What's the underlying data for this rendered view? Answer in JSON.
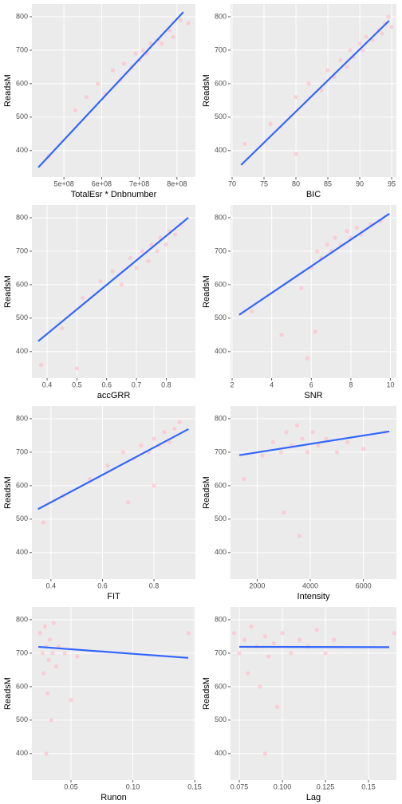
{
  "chart_data": [
    {
      "type": "scatter",
      "x_label": "TotalEsr * Dnbnumber",
      "y_label": "ReadsM",
      "point_color": "#ffb6c1",
      "line_color": "#3366ff",
      "xlim": [
        415000000,
        849000000
      ],
      "ylim": [
        321,
        838
      ],
      "xticks": [
        {
          "value": 500000000,
          "label": "5e+08"
        },
        {
          "value": 600000000,
          "label": "6e+08"
        },
        {
          "value": 700000000,
          "label": "7e+08"
        },
        {
          "value": 800000000,
          "label": "8e+08"
        }
      ],
      "yticks": [
        400,
        500,
        600,
        700,
        800
      ],
      "x": [
        460000000,
        530000000,
        560000000,
        590000000,
        610000000,
        630000000,
        650000000,
        660000000,
        680000000,
        690000000,
        700000000,
        710000000,
        720000000,
        730000000,
        750000000,
        760000000,
        780000000,
        790000000,
        810000000,
        830000000
      ],
      "y": [
        384,
        520,
        560,
        600,
        570,
        640,
        610,
        660,
        650,
        690,
        670,
        700,
        690,
        720,
        730,
        720,
        760,
        740,
        790,
        780
      ],
      "fit": {
        "x": [
          432000000,
          817000000
        ],
        "y": [
          350,
          814
        ]
      }
    },
    {
      "type": "scatter",
      "x_label": "BIC",
      "y_label": "ReadsM",
      "point_color": "#ffb6c1",
      "line_color": "#3366ff",
      "xlim": [
        69.75,
        95.75
      ],
      "ylim": [
        321,
        838
      ],
      "xticks": [
        70,
        75,
        80,
        85,
        90,
        95
      ],
      "yticks": [
        400,
        500,
        600,
        700,
        800
      ],
      "x": [
        72,
        76,
        80,
        82,
        84,
        85,
        86,
        87,
        88,
        88.5,
        89,
        90,
        90.5,
        91,
        92,
        93,
        93.5,
        94,
        94.5,
        95,
        80
      ],
      "y": [
        420,
        480,
        560,
        600,
        580,
        640,
        620,
        670,
        650,
        700,
        680,
        720,
        700,
        740,
        730,
        760,
        750,
        780,
        800,
        770,
        390
      ],
      "fit": {
        "x": [
          71.4,
          94.6
        ],
        "y": [
          357,
          788
        ]
      }
    },
    {
      "type": "scatter",
      "x_label": "accGRR",
      "y_label": "ReadsM",
      "point_color": "#ffb6c1",
      "line_color": "#3366ff",
      "xlim": [
        0.349,
        0.898
      ],
      "ylim": [
        321,
        838
      ],
      "xticks": [
        0.4,
        0.5,
        0.6,
        0.7,
        0.8
      ],
      "yticks": [
        400,
        500,
        600,
        700,
        800
      ],
      "x": [
        0.38,
        0.45,
        0.52,
        0.58,
        0.62,
        0.65,
        0.68,
        0.7,
        0.72,
        0.74,
        0.75,
        0.77,
        0.78,
        0.8,
        0.81,
        0.83,
        0.85,
        0.5
      ],
      "y": [
        360,
        470,
        560,
        610,
        640,
        600,
        680,
        650,
        700,
        670,
        720,
        700,
        740,
        720,
        760,
        750,
        780,
        350
      ],
      "fit": {
        "x": [
          0.37,
          0.874
        ],
        "y": [
          431,
          800
        ]
      }
    },
    {
      "type": "scatter",
      "x_label": "SNR",
      "y_label": "ReadsM",
      "point_color": "#ffb6c1",
      "line_color": "#3366ff",
      "xlim": [
        1.92,
        10.3
      ],
      "ylim": [
        321,
        838
      ],
      "xticks": [
        2,
        4,
        6,
        8,
        10
      ],
      "yticks": [
        400,
        500,
        600,
        700,
        800
      ],
      "x": [
        3,
        4.5,
        5.5,
        6,
        6.3,
        6.5,
        6.8,
        7,
        7.2,
        7.5,
        7.8,
        8,
        8.3,
        8.5,
        9,
        9.5,
        5.8,
        6.2
      ],
      "y": [
        520,
        450,
        590,
        650,
        700,
        680,
        720,
        700,
        740,
        720,
        760,
        740,
        770,
        750,
        780,
        790,
        380,
        460
      ],
      "fit": {
        "x": [
          2.36,
          9.94
        ],
        "y": [
          510,
          812
        ]
      }
    },
    {
      "type": "scatter",
      "x_label": "FIT",
      "y_label": "ReadsM",
      "point_color": "#ffb6c1",
      "line_color": "#3366ff",
      "xlim": [
        0.326,
        0.961
      ],
      "ylim": [
        321,
        838
      ],
      "xticks": [
        0.4,
        0.6,
        0.8
      ],
      "yticks": [
        400,
        500,
        600,
        700,
        800
      ],
      "x": [
        0.37,
        0.45,
        0.55,
        0.62,
        0.68,
        0.72,
        0.75,
        0.78,
        0.8,
        0.82,
        0.84,
        0.86,
        0.88,
        0.9,
        0.7,
        0.8
      ],
      "y": [
        490,
        570,
        620,
        660,
        700,
        680,
        720,
        700,
        740,
        720,
        760,
        730,
        770,
        790,
        550,
        600
      ],
      "fit": {
        "x": [
          0.35,
          0.934
        ],
        "y": [
          530,
          769
        ]
      }
    },
    {
      "type": "scatter",
      "x_label": "Intensity",
      "y_label": "ReadsM",
      "point_color": "#ffb6c1",
      "line_color": "#3366ff",
      "xlim": [
        1000,
        7240
      ],
      "ylim": [
        321,
        838
      ],
      "xticks": [
        2000,
        4000,
        6000
      ],
      "yticks": [
        400,
        500,
        600,
        700,
        800
      ],
      "x": [
        1500,
        2200,
        2600,
        2900,
        3100,
        3300,
        3500,
        3700,
        3900,
        4100,
        4300,
        4600,
        5000,
        5400,
        6000,
        6800,
        3000,
        3600
      ],
      "y": [
        620,
        690,
        730,
        700,
        760,
        720,
        780,
        740,
        700,
        760,
        720,
        740,
        700,
        730,
        710,
        760,
        520,
        450
      ],
      "fit": {
        "x": [
          1330,
          6970
        ],
        "y": [
          691,
          762
        ]
      }
    },
    {
      "type": "scatter",
      "x_label": "Runon",
      "y_label": "ReadsM",
      "point_color": "#ffb6c1",
      "line_color": "#3366ff",
      "xlim": [
        0.0184,
        0.1506
      ],
      "ylim": [
        321,
        838
      ],
      "xticks": [
        0.05,
        {
          "value": 0.1,
          "label": "0.10"
        },
        0.15
      ],
      "yticks": [
        400,
        500,
        600,
        700,
        800
      ],
      "x": [
        0.025,
        0.027,
        0.028,
        0.029,
        0.03,
        0.031,
        0.032,
        0.033,
        0.034,
        0.035,
        0.036,
        0.038,
        0.04,
        0.045,
        0.05,
        0.055,
        0.03,
        0.145
      ],
      "y": [
        760,
        700,
        640,
        780,
        720,
        580,
        680,
        740,
        500,
        700,
        790,
        660,
        720,
        700,
        560,
        690,
        400,
        760
      ],
      "fit": {
        "x": [
          0.0236,
          0.1448
        ],
        "y": [
          719,
          686
        ]
      }
    },
    {
      "type": "scatter",
      "x_label": "Lag",
      "y_label": "ReadsM",
      "point_color": "#ffb6c1",
      "line_color": "#3366ff",
      "xlim": [
        0.0699,
        0.1662
      ],
      "ylim": [
        321,
        838
      ],
      "xticks": [
        0.075,
        {
          "value": 0.1,
          "label": "0.100"
        },
        0.125,
        0.15
      ],
      "yticks": [
        400,
        500,
        600,
        700,
        800
      ],
      "x": [
        0.072,
        0.075,
        0.078,
        0.08,
        0.082,
        0.085,
        0.087,
        0.09,
        0.092,
        0.095,
        0.097,
        0.1,
        0.105,
        0.11,
        0.115,
        0.12,
        0.125,
        0.13,
        0.09,
        0.165
      ],
      "y": [
        760,
        700,
        740,
        640,
        780,
        720,
        600,
        750,
        690,
        730,
        540,
        760,
        700,
        740,
        720,
        770,
        700,
        740,
        400,
        760
      ],
      "fit": {
        "x": [
          0.075,
          0.162
        ],
        "y": [
          719,
          718
        ]
      }
    }
  ]
}
